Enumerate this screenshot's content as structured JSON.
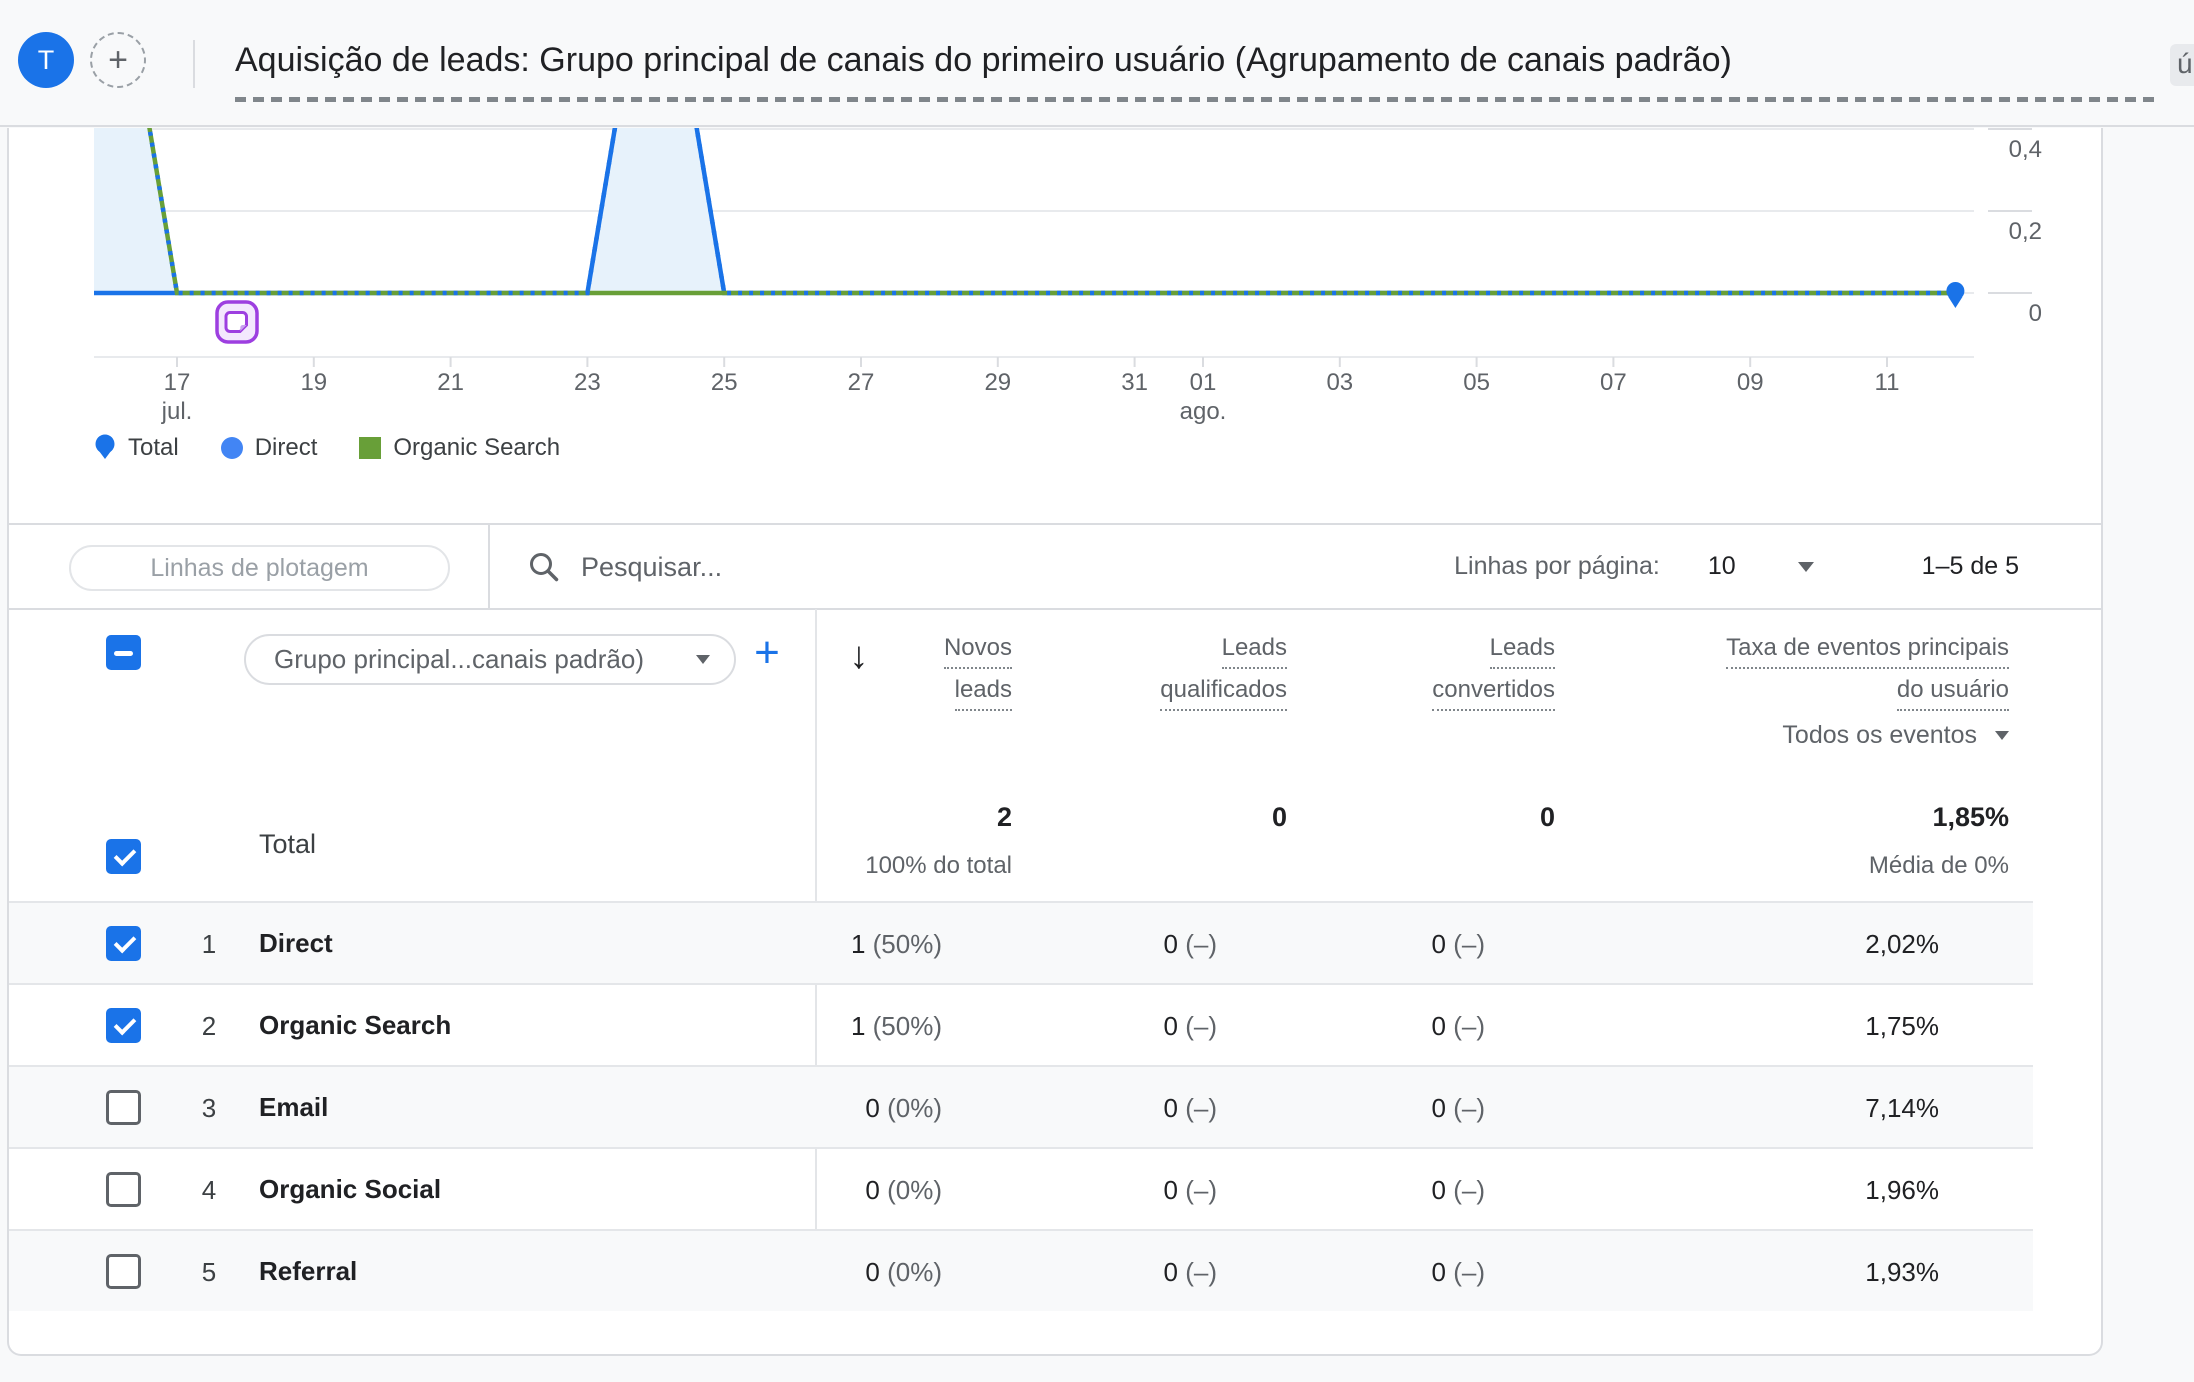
{
  "topbar": {
    "avatar": "T",
    "title": "Aquisição de leads: Grupo principal de canais do primeiro usuário (Agrupamento de canais padrão)",
    "truncated_suffix": "ú"
  },
  "colors": {
    "blue": "#1a73e8",
    "direct_blue": "#4285f4",
    "green": "#689f38",
    "area_fill": "#e7f2fb",
    "annotation_purple": "#9d3fe0"
  },
  "chart_data": {
    "type": "area",
    "title": "",
    "x_unit": "day (0 = 16 jul.)",
    "ylim": [
      0,
      0.45
    ],
    "grid": true,
    "y_ticks": [
      {
        "label": "0",
        "v": 0
      },
      {
        "label": "0,2",
        "v": 0.2
      },
      {
        "label": "0,4",
        "v": 0.4
      }
    ],
    "x_ticks": [
      {
        "label": "17",
        "sub": "jul.",
        "day": 1
      },
      {
        "label": "19",
        "day": 3
      },
      {
        "label": "21",
        "day": 5
      },
      {
        "label": "23",
        "day": 7
      },
      {
        "label": "25",
        "day": 9
      },
      {
        "label": "27",
        "day": 11
      },
      {
        "label": "29",
        "day": 13
      },
      {
        "label": "31",
        "day": 15
      },
      {
        "label": "01",
        "sub": "ago.",
        "day": 16
      },
      {
        "label": "03",
        "day": 18
      },
      {
        "label": "05",
        "day": 20
      },
      {
        "label": "07",
        "day": 22
      },
      {
        "label": "09",
        "day": 24
      },
      {
        "label": "11",
        "day": 26
      }
    ],
    "series": [
      {
        "name": "Total",
        "color": "#1a73e8",
        "role": "total",
        "points": [
          [
            0,
            1
          ],
          [
            1,
            0
          ],
          [
            7,
            0
          ],
          [
            8,
            1
          ],
          [
            9,
            0
          ],
          [
            27,
            0
          ]
        ]
      },
      {
        "name": "Direct",
        "color": "#1a73e8",
        "role": "line",
        "points": [
          [
            0,
            0
          ],
          [
            7,
            0
          ],
          [
            8,
            1
          ],
          [
            9,
            0
          ],
          [
            27,
            0
          ]
        ]
      },
      {
        "name": "Organic Search",
        "color": "#689f38",
        "role": "line-behind",
        "points": [
          [
            0,
            1
          ],
          [
            1,
            0
          ],
          [
            27,
            0
          ]
        ]
      }
    ],
    "legend": [
      {
        "label": "Total",
        "swatch": "pin"
      },
      {
        "label": "Direct",
        "swatch": "circle"
      },
      {
        "label": "Organic Search",
        "swatch": "square"
      }
    ],
    "annotation_day": 2,
    "legend_position": "bottom-left"
  },
  "toolbar": {
    "plot_rows_label": "Linhas de plotagem",
    "search_placeholder": "Pesquisar...",
    "rows_per_page_label": "Linhas por página:",
    "rows_per_page_value": "10",
    "range_label": "1–5 de 5"
  },
  "table": {
    "header_checkbox": "indeterminate",
    "dimension_dropdown": "Grupo principal...canais padrão)",
    "columns": [
      {
        "line1": "Novos",
        "line2": "leads"
      },
      {
        "line1": "Leads",
        "line2": "qualificados"
      },
      {
        "line1": "Leads",
        "line2": "convertidos"
      },
      {
        "line1": "Taxa de eventos principais",
        "line2": "do usuário",
        "filter": "Todos os eventos"
      }
    ],
    "total": {
      "label": "Total",
      "c1": "2",
      "c1_sub": "100% do total",
      "c2": "0",
      "c3": "0",
      "c4": "1,85%",
      "c4_sub": "Média de 0%"
    },
    "rows": [
      {
        "rank": "1",
        "name": "Direct",
        "checked": true,
        "c1": "1",
        "c1_pct": "(50%)",
        "c2": "0",
        "c2_pct": "(–)",
        "c3": "0",
        "c3_pct": "(–)",
        "c4": "2,02%"
      },
      {
        "rank": "2",
        "name": "Organic Search",
        "checked": true,
        "c1": "1",
        "c1_pct": "(50%)",
        "c2": "0",
        "c2_pct": "(–)",
        "c3": "0",
        "c3_pct": "(–)",
        "c4": "1,75%"
      },
      {
        "rank": "3",
        "name": "Email",
        "checked": false,
        "c1": "0",
        "c1_pct": "(0%)",
        "c2": "0",
        "c2_pct": "(–)",
        "c3": "0",
        "c3_pct": "(–)",
        "c4": "7,14%"
      },
      {
        "rank": "4",
        "name": "Organic Social",
        "checked": false,
        "c1": "0",
        "c1_pct": "(0%)",
        "c2": "0",
        "c2_pct": "(–)",
        "c3": "0",
        "c3_pct": "(–)",
        "c4": "1,96%"
      },
      {
        "rank": "5",
        "name": "Referral",
        "checked": false,
        "c1": "0",
        "c1_pct": "(0%)",
        "c2": "0",
        "c2_pct": "(–)",
        "c3": "0",
        "c3_pct": "(–)",
        "c4": "1,93%"
      }
    ]
  }
}
